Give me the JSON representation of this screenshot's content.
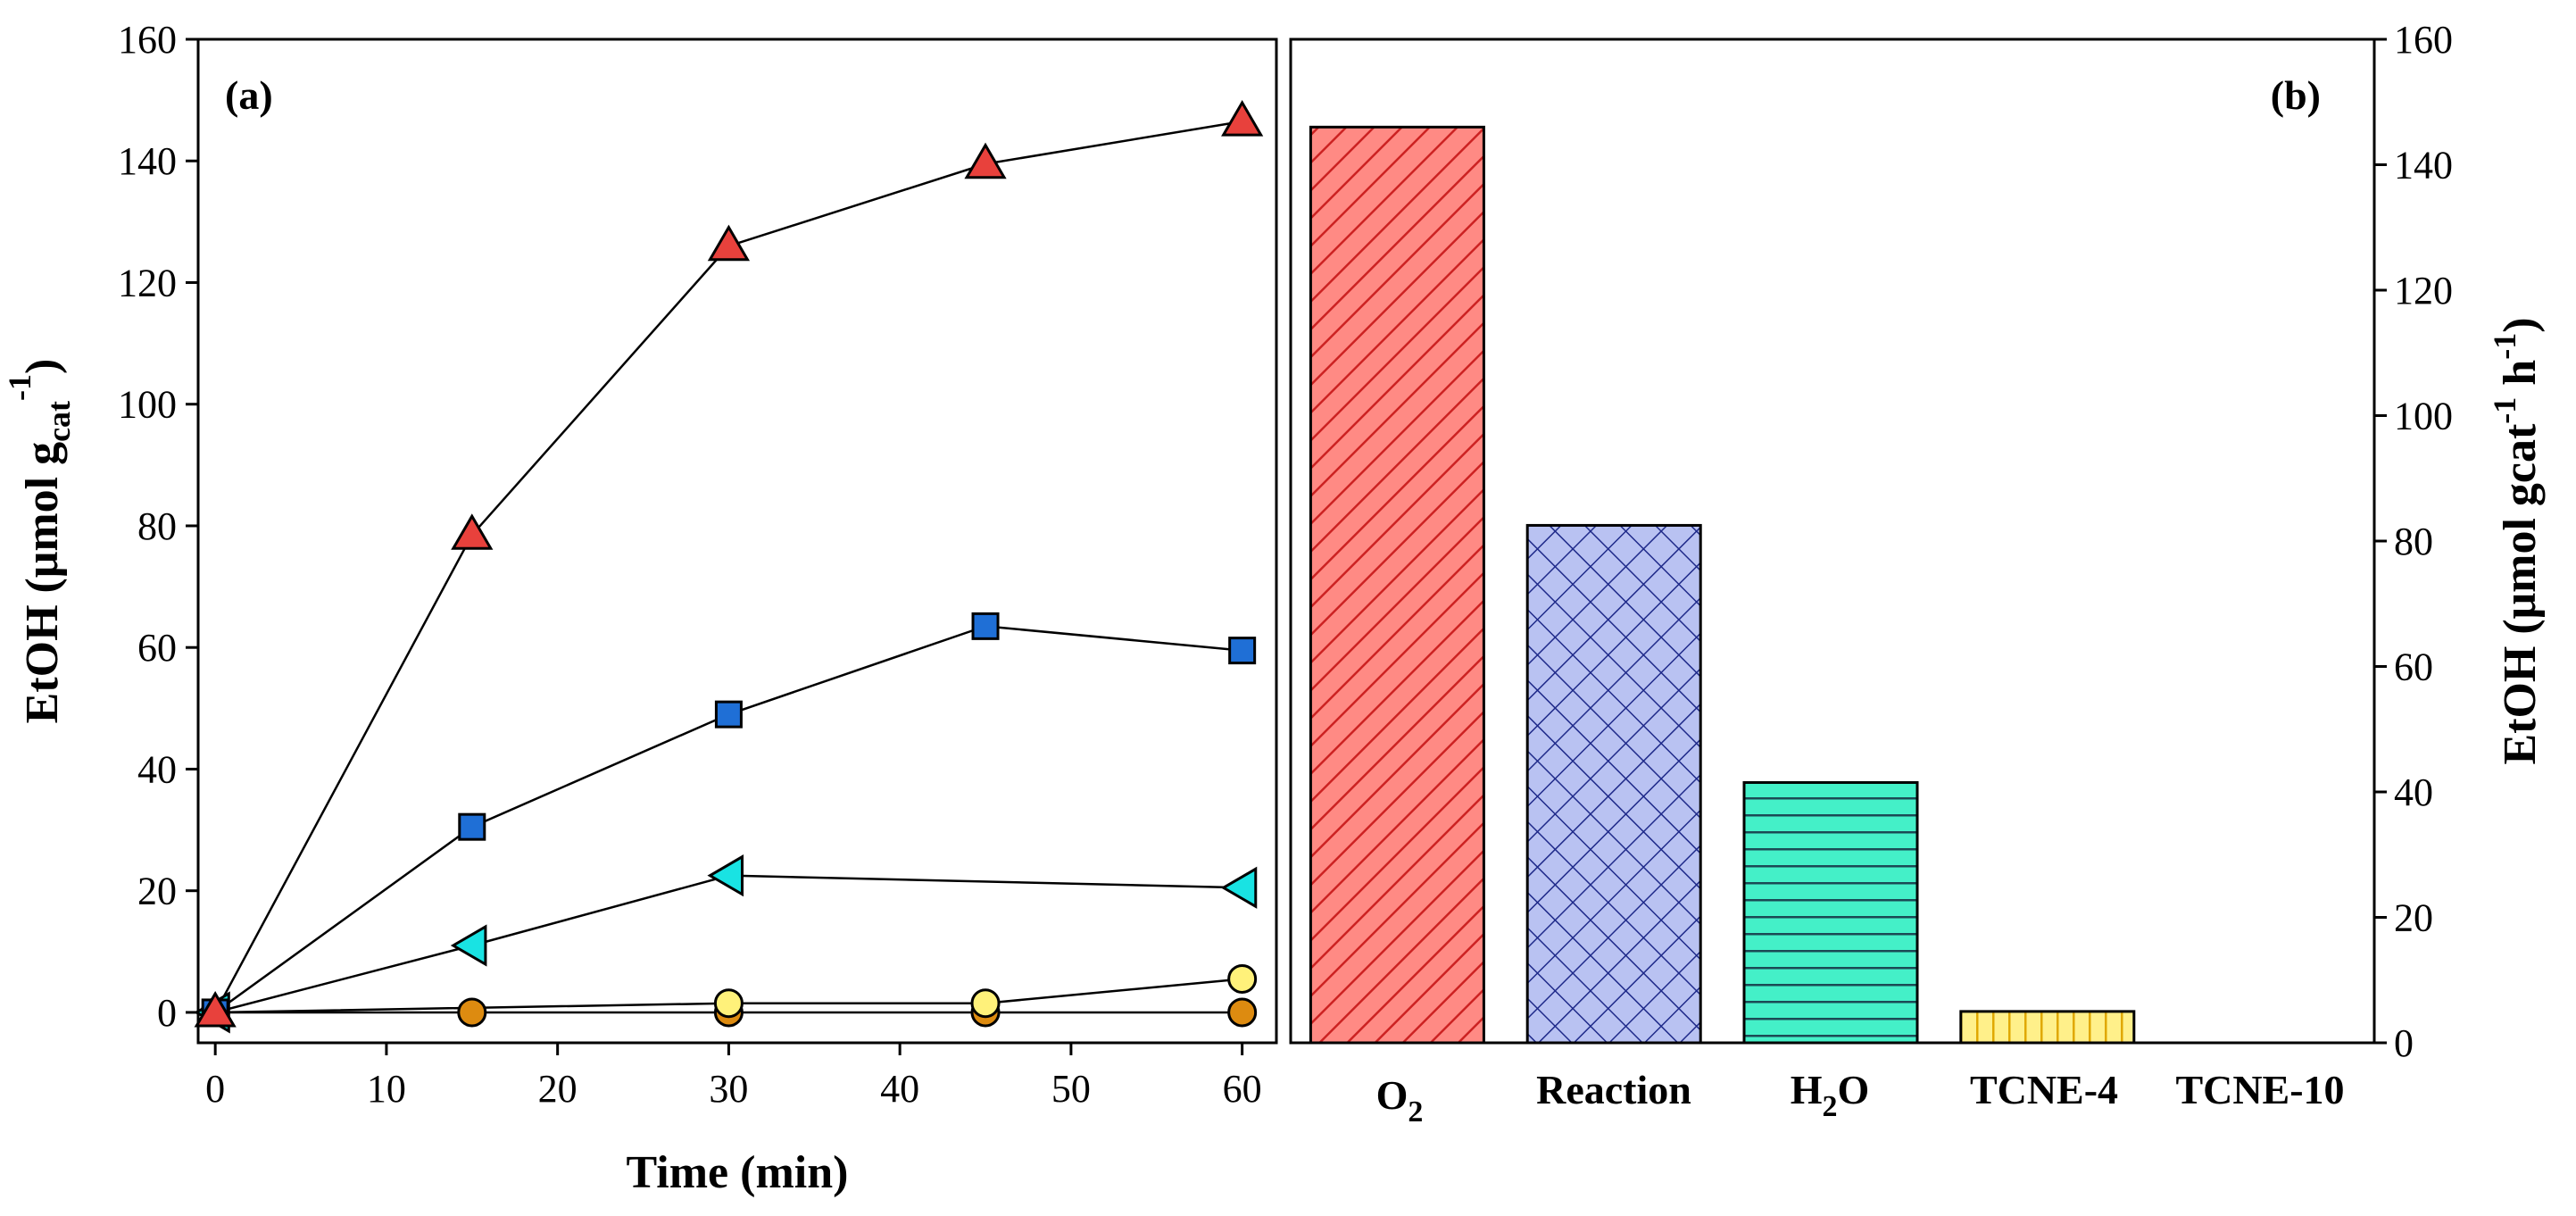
{
  "chart_data": [
    {
      "panel": "(a)",
      "type": "line",
      "xlabel": "Time (min)",
      "ylabel": "EtOH (μmol g",
      "ylabel_sub": "cat",
      "ylabel_sup": "-1",
      "ylabel_close": ")",
      "xlim": [
        -1,
        62
      ],
      "ylim": [
        -5,
        160
      ],
      "xticks": [
        0,
        10,
        20,
        30,
        40,
        50,
        60
      ],
      "yticks": [
        0,
        20,
        40,
        60,
        80,
        100,
        120,
        140,
        160
      ],
      "x": [
        0,
        15,
        30,
        45,
        60
      ],
      "series": [
        {
          "name": "red triangles",
          "marker": "triangle-up",
          "color": "#e8413c",
          "values": [
            0,
            78.5,
            126,
            139.5,
            146.5
          ]
        },
        {
          "name": "blue squares",
          "marker": "square",
          "color": "#1f6fd6",
          "values": [
            0,
            30.5,
            49,
            63.5,
            59.5
          ]
        },
        {
          "name": "cyan triangles",
          "marker": "triangle-left",
          "color": "#19e3e3",
          "values": [
            0,
            11,
            22.5,
            null,
            20.5
          ]
        },
        {
          "name": "yellow circles",
          "marker": "circle",
          "color": "#fff17a",
          "values": [
            0,
            null,
            1.5,
            1.5,
            5.5
          ]
        },
        {
          "name": "orange circles",
          "marker": "circle",
          "color": "#dd8b10",
          "values": [
            0,
            0,
            0,
            0,
            0
          ]
        }
      ]
    },
    {
      "panel": "(b)",
      "type": "bar",
      "categories": [
        "Reaction",
        "H",
        "TCNE-4",
        "TCNE-10"
      ],
      "cat_o2_main": "O",
      "cat_o2_sub": "2",
      "cat_h2o_main": "H",
      "cat_h2o_sub": "2",
      "cat_h2o_tail": "O",
      "bars": [
        {
          "label": "O2",
          "value": 146,
          "color": "#ff8a84",
          "hatch": "diag",
          "hatch_color": "#cc2222"
        },
        {
          "label": "Reaction",
          "value": 82.5,
          "color": "#b9c2f2",
          "hatch": "cross",
          "hatch_color": "#1f2a8a"
        },
        {
          "label": "H2O",
          "value": 41.5,
          "color": "#44f0c8",
          "hatch": "horizontal",
          "hatch_color": "#1b4a55"
        },
        {
          "label": "TCNE-4",
          "value": 5,
          "color": "#fff08a",
          "hatch": "vertical",
          "hatch_color": "#e0a800"
        },
        {
          "label": "TCNE-10",
          "value": 0,
          "color": "#ffffff",
          "hatch": "none",
          "hatch_color": "#000000"
        }
      ],
      "ylabel": "EtOH (μmol gcat",
      "ylabel_sup1": "-1",
      "ylabel_mid": " h",
      "ylabel_sup2": "-1",
      "ylabel_close": ")",
      "ylim": [
        0,
        160
      ],
      "yticks": [
        0,
        20,
        40,
        60,
        80,
        100,
        120,
        140,
        160
      ],
      "yaxis_side": "right"
    }
  ]
}
